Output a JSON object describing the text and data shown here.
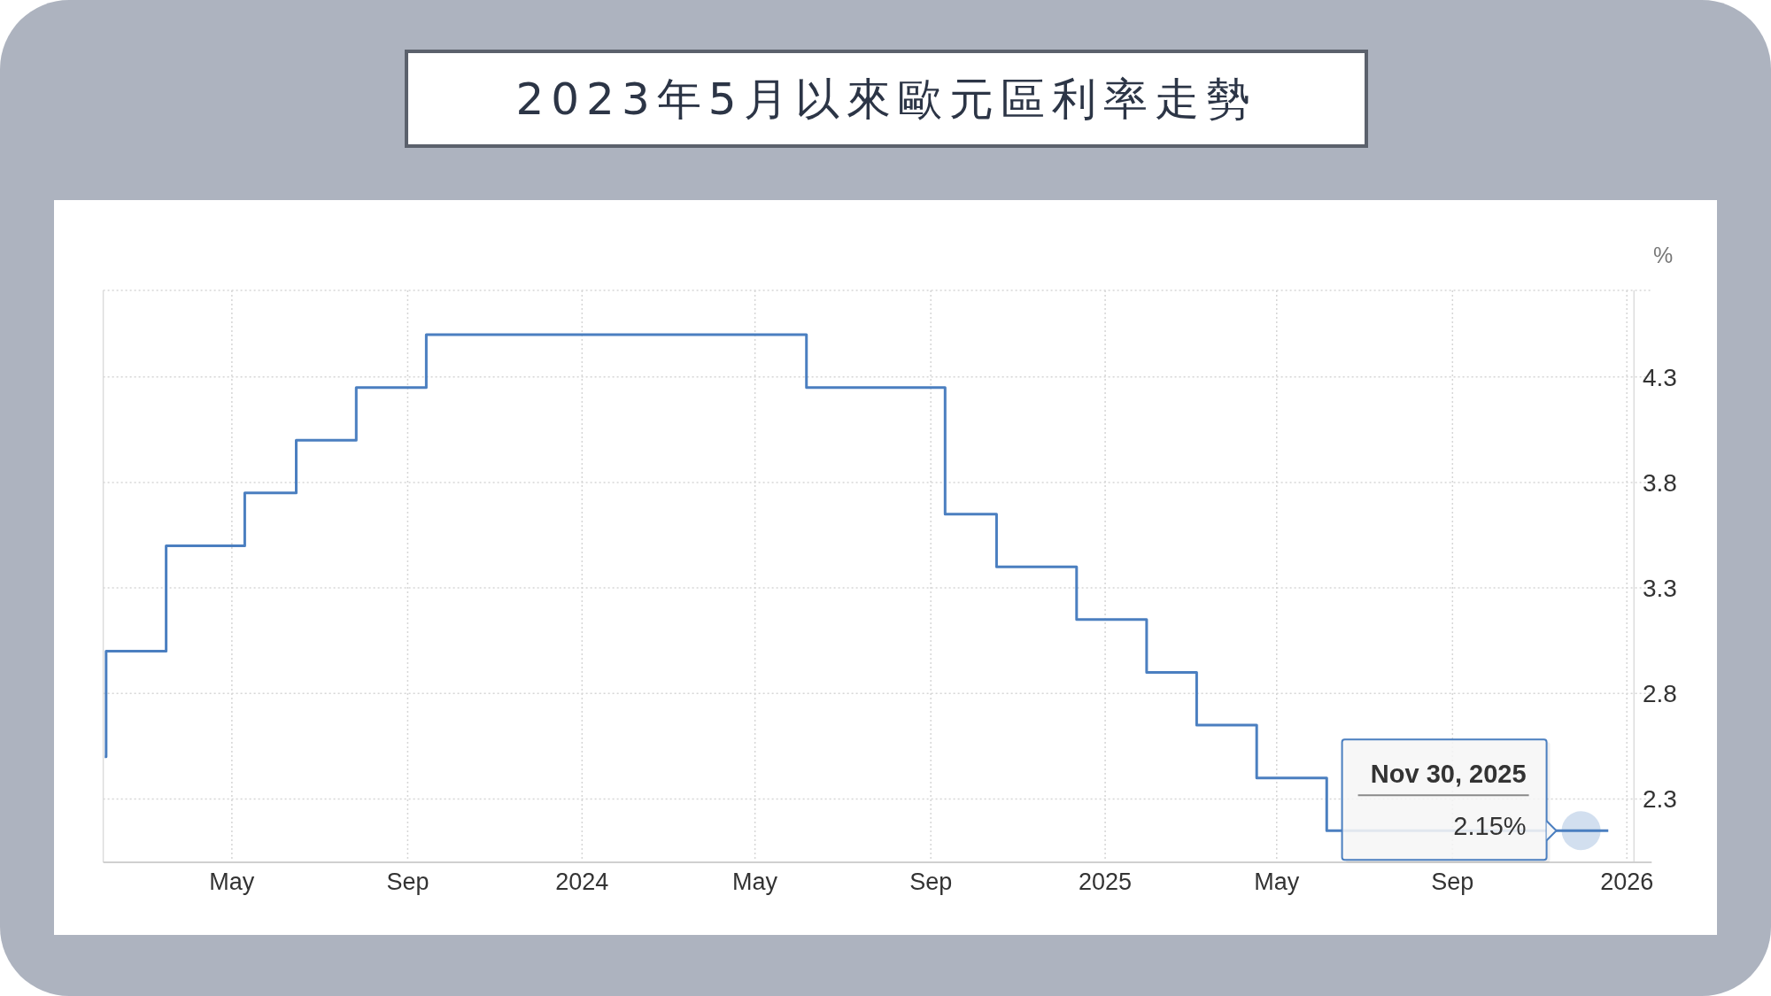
{
  "chart_data": {
    "type": "step",
    "title": "2023年5月以來歐元區利率走勢",
    "ylabel": "%",
    "x": [
      "2023-02-01",
      "2023-02-02",
      "2023-03-16",
      "2023-05-10",
      "2023-06-15",
      "2023-07-27",
      "2023-09-14",
      "2024-06-06",
      "2024-09-11",
      "2024-10-17",
      "2024-12-12",
      "2025-01-30",
      "2025-03-06",
      "2025-04-17",
      "2025-06-05",
      "2025-11-30",
      "2025-12-19"
    ],
    "values": [
      2.5,
      3.0,
      3.5,
      3.75,
      4.0,
      4.25,
      4.5,
      4.25,
      3.65,
      3.4,
      3.15,
      2.9,
      2.65,
      2.4,
      2.15,
      2.15,
      2.15
    ],
    "color": "#4b7fc0",
    "xlim": [
      "2023-01-31",
      "2026-01-06"
    ],
    "ylim": [
      2.0,
      4.71
    ],
    "xticks": [
      {
        "value": "2023-05-01",
        "label": "May"
      },
      {
        "value": "2023-09-01",
        "label": "Sep"
      },
      {
        "value": "2024-01-01",
        "label": "2024"
      },
      {
        "value": "2024-05-01",
        "label": "May"
      },
      {
        "value": "2024-09-01",
        "label": "Sep"
      },
      {
        "value": "2025-01-01",
        "label": "2025"
      },
      {
        "value": "2025-05-01",
        "label": "May"
      },
      {
        "value": "2025-09-01",
        "label": "Sep"
      },
      {
        "value": "2026-01-01",
        "label": "2026"
      }
    ],
    "yticks": [
      2.3,
      2.8,
      3.3,
      3.8,
      4.3
    ],
    "grid": true,
    "annotations": [
      {
        "text": "Nov 30, 2025",
        "x": "2025-11-30",
        "y": 2.15
      },
      {
        "text": "2.15%",
        "x": "2025-11-30",
        "y": 2.15
      }
    ]
  }
}
